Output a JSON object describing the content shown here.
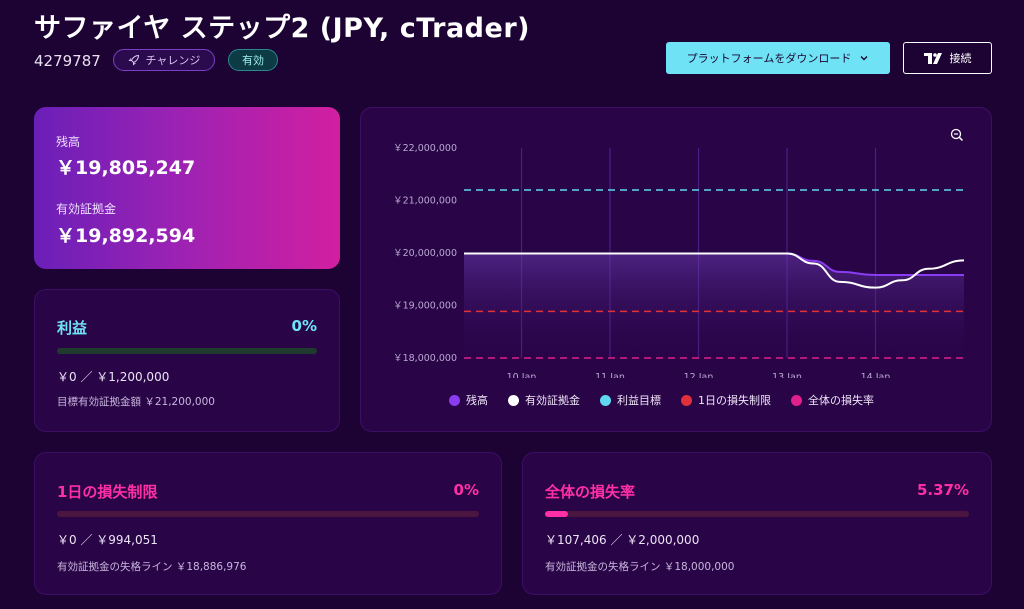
{
  "header": {
    "title": "サファイヤ ステップ2 (JPY, cTrader)",
    "account_id": "4279787",
    "badge_challenge": "チャレンジ",
    "badge_active": "有効",
    "download_label": "プラットフォームをダウンロード",
    "connect_label": "接続"
  },
  "balance_card": {
    "balance_label": "残高",
    "balance_value": "￥19,805,247",
    "equity_label": "有効証拠金",
    "equity_value": "￥19,892,594"
  },
  "profit_card": {
    "title": "利益",
    "percent": "0%",
    "progress": 0,
    "amount": "￥0 ／ ￥1,200,000",
    "target_label": "目標有効証拠金額 ￥21,200,000"
  },
  "daily_loss_card": {
    "title": "1日の損失制限",
    "percent": "0%",
    "progress": 0,
    "amount": "￥0 ／ ￥994,051",
    "line_label": "有効証拠金の失格ライン ￥18,886,976"
  },
  "total_loss_card": {
    "title": "全体の損失率",
    "percent": "5.37%",
    "progress": 0.0537,
    "amount": "￥107,406 ／ ￥2,000,000",
    "line_label": "有効証拠金の失格ライン ￥18,000,000"
  },
  "colors": {
    "balance": "#8a3cf0",
    "equity": "#ffffff",
    "profit_target": "#5fd8f0",
    "daily_loss": "#e0303a",
    "total_loss": "#e0208c",
    "profit_text": "#6fe3f5",
    "loss_text": "#ff2fa6"
  },
  "chart_data": {
    "type": "line",
    "y_tick_labels": [
      "￥22,000,000",
      "￥21,000,000",
      "￥20,000,000",
      "￥19,000,000",
      "￥18,000,000"
    ],
    "y_ticks": [
      22000000,
      21000000,
      20000000,
      19000000,
      18000000
    ],
    "ylim": [
      18000000,
      22000000
    ],
    "x_tick_labels": [
      "10 Jan",
      "11 Jan",
      "12 Jan",
      "13 Jan",
      "14 Jan"
    ],
    "x_ticks": [
      10,
      11,
      12,
      13,
      14
    ],
    "xlim": [
      9.35,
      15.0
    ],
    "grid": "vertical",
    "legend_position": "bottom",
    "series": [
      {
        "name": "残高",
        "kind": "line",
        "x": [
          9.35,
          10,
          11,
          12,
          13,
          13.3,
          13.6,
          14,
          14.5,
          15.0
        ],
        "y": [
          19990000,
          19990000,
          19990000,
          19990000,
          19990000,
          19850000,
          19640000,
          19580000,
          19580000,
          19580000
        ]
      },
      {
        "name": "有効証拠金",
        "kind": "line",
        "x": [
          9.35,
          10,
          11,
          12,
          13,
          13.3,
          13.6,
          14,
          14.3,
          14.6,
          15.0
        ],
        "y": [
          19990000,
          19990000,
          19990000,
          19990000,
          19990000,
          19800000,
          19450000,
          19340000,
          19480000,
          19700000,
          19860000
        ]
      },
      {
        "name": "利益目標",
        "kind": "hline",
        "y": 21200000
      },
      {
        "name": "1日の損失制限",
        "kind": "hline",
        "y": 18886976
      },
      {
        "name": "全体の損失率",
        "kind": "hline",
        "y": 18000000
      }
    ]
  }
}
